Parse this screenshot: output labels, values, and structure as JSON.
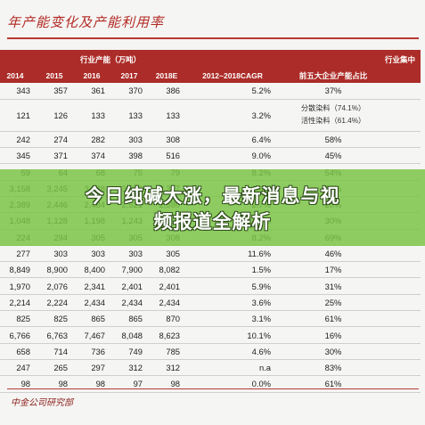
{
  "title": "年产能变化及产能利用率",
  "header": {
    "capacity_group": "行业产能（万吨）",
    "industry_group": "行业集中",
    "years": [
      "2014",
      "2015",
      "2016",
      "2017",
      "2018E"
    ],
    "cagr": "2012~2018CAGR",
    "top5": "前五大企业产能占比",
    "extra": ""
  },
  "rows": [
    {
      "v": [
        "343",
        "357",
        "361",
        "370",
        "386"
      ],
      "cagr": "5.2%",
      "share": "37%"
    },
    {
      "v": [
        "121",
        "126",
        "133",
        "133",
        "133"
      ],
      "cagr": "3.2%",
      "share": "",
      "sub1": "分散染料（74.1%）",
      "sub2": "活性染料（61.4%）"
    },
    {
      "v": [
        "242",
        "274",
        "282",
        "303",
        "308"
      ],
      "cagr": "6.4%",
      "share": "58%"
    },
    {
      "v": [
        "345",
        "371",
        "374",
        "398",
        "516"
      ],
      "cagr": "9.0%",
      "share": "45%"
    },
    {
      "v": [
        "59",
        "64",
        "68",
        "75",
        "79"
      ],
      "cagr": "8.2%",
      "share": "54%"
    },
    {
      "v": [
        "3,158",
        "3,245",
        "3,248",
        "3,256",
        "3,327"
      ],
      "cagr": "1.4%",
      "share": "25%"
    },
    {
      "v": [
        "2,389",
        "2,446",
        "2,484",
        "2,521",
        "2,580"
      ],
      "cagr": "2.7%",
      "share": "20%"
    },
    {
      "v": [
        "1,048",
        "1,128",
        "1,198",
        "1,243",
        "1,262"
      ],
      "cagr": "4.1%",
      "share": "30%"
    },
    {
      "v": [
        "224",
        "294",
        "305",
        "305",
        "308"
      ],
      "cagr": "8.2%",
      "share": "69%"
    },
    {
      "v": [
        "277",
        "303",
        "303",
        "303",
        "305"
      ],
      "cagr": "11.6%",
      "share": "46%"
    },
    {
      "v": [
        "8,849",
        "8,900",
        "8,400",
        "7,900",
        "8,082"
      ],
      "cagr": "1.5%",
      "share": "17%"
    },
    {
      "v": [
        "1,970",
        "2,076",
        "2,341",
        "2,401",
        "2,401"
      ],
      "cagr": "5.9%",
      "share": "31%"
    },
    {
      "v": [
        "2,214",
        "2,224",
        "2,434",
        "2,434",
        "2,434"
      ],
      "cagr": "3.6%",
      "share": "25%"
    },
    {
      "v": [
        "825",
        "825",
        "865",
        "865",
        "870"
      ],
      "cagr": "3.1%",
      "share": "61%"
    },
    {
      "v": [
        "6,766",
        "6,763",
        "7,467",
        "8,048",
        "8,623"
      ],
      "cagr": "10.1%",
      "share": "16%"
    },
    {
      "v": [
        "658",
        "714",
        "736",
        "749",
        "785"
      ],
      "cagr": "4.6%",
      "share": "30%"
    },
    {
      "v": [
        "247",
        "265",
        "297",
        "312",
        "312"
      ],
      "cagr": "n.a",
      "share": "83%"
    },
    {
      "v": [
        "98",
        "98",
        "98",
        "97",
        "98"
      ],
      "cagr": "0.0%",
      "share": "61%"
    }
  ],
  "banner": {
    "line1": "今日纯碱大涨，最新消息与视",
    "line2": "频报道全解析"
  },
  "source": "中金公司研究部",
  "colors": {
    "header_bg": "#ab2c28",
    "banner": "#7ac446",
    "title": "#b22a24"
  }
}
